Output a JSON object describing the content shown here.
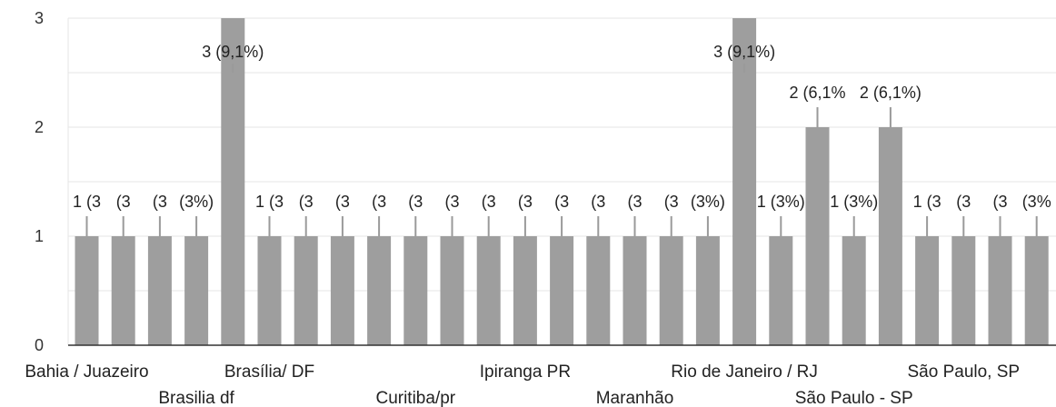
{
  "chart_data": {
    "type": "bar",
    "ylim": [
      0,
      3
    ],
    "yticks": [
      0,
      1,
      2,
      3
    ],
    "bar_color": "#9e9e9e",
    "grid": true,
    "legend": "none",
    "values": [
      1,
      1,
      1,
      1,
      3,
      1,
      1,
      1,
      1,
      1,
      1,
      1,
      1,
      1,
      1,
      1,
      1,
      1,
      3,
      1,
      2,
      1,
      2,
      1,
      1,
      1,
      1
    ],
    "data_labels": [
      "1 (3",
      "(3",
      "(3",
      "(3%)",
      "3 (9,1%)",
      "1 (3",
      "(3",
      "(3",
      "(3",
      "(3",
      "(3",
      "(3",
      "(3",
      "(3",
      "(3",
      "(3",
      "(3",
      "(3%)",
      "3 (9,1%)",
      "1 (3%)",
      "2 (6,1%",
      "1 (3%)",
      "2 (6,1%)",
      "1 (3",
      "(3",
      "(3",
      "(3%"
    ],
    "x_tick_labels": [
      {
        "text": "Bahia / Juazeiro",
        "bar": 0,
        "row": 0
      },
      {
        "text": "Brasilia df",
        "bar": 3,
        "row": 1
      },
      {
        "text": "Brasília/ DF",
        "bar": 5,
        "row": 0
      },
      {
        "text": "Curitiba/pr",
        "bar": 9,
        "row": 1
      },
      {
        "text": "Ipiranga PR",
        "bar": 12,
        "row": 0
      },
      {
        "text": "Maranhão",
        "bar": 15,
        "row": 1
      },
      {
        "text": "Rio de Janeiro / RJ",
        "bar": 18,
        "row": 0
      },
      {
        "text": "São Paulo - SP",
        "bar": 21,
        "row": 1
      },
      {
        "text": "São Paulo, SP",
        "bar": 24,
        "row": 0
      }
    ]
  }
}
